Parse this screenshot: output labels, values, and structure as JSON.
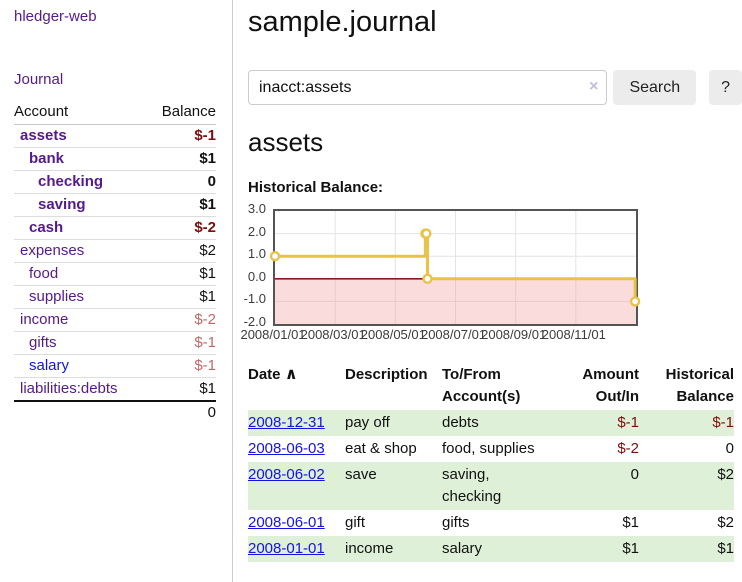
{
  "app": {
    "title": "hledger-web"
  },
  "sidebar": {
    "nav_journal": "Journal",
    "accounts": {
      "col_account": "Account",
      "col_balance": "Balance",
      "rows": [
        {
          "name": "assets",
          "depth": 1,
          "in_account": true,
          "balance": "$-1",
          "negative": true
        },
        {
          "name": "bank",
          "depth": 2,
          "in_account": true,
          "balance": "$1",
          "negative": false
        },
        {
          "name": "checking",
          "depth": 3,
          "in_account": true,
          "balance": "0",
          "negative": false
        },
        {
          "name": "saving",
          "depth": 3,
          "in_account": true,
          "balance": "$1",
          "negative": false
        },
        {
          "name": "cash",
          "depth": 2,
          "in_account": true,
          "balance": "$-2",
          "negative": true
        },
        {
          "name": "expenses",
          "depth": 1,
          "in_account": false,
          "balance": "$2",
          "negative": false
        },
        {
          "name": "food",
          "depth": 2,
          "in_account": false,
          "balance": "$1",
          "negative": false
        },
        {
          "name": "supplies",
          "depth": 2,
          "in_account": false,
          "balance": "$1",
          "negative": false
        },
        {
          "name": "income",
          "depth": 1,
          "in_account": false,
          "balance": "$-2",
          "negative": true
        },
        {
          "name": "gifts",
          "depth": 2,
          "in_account": false,
          "balance": "$-1",
          "negative": true
        },
        {
          "name": "salary",
          "depth": 2,
          "in_account": false,
          "balance": "$-1",
          "negative": true,
          "unvisited": true
        },
        {
          "name": "liabilities:debts",
          "depth": 1,
          "in_account": false,
          "balance": "$1",
          "negative": false
        }
      ],
      "total": "0"
    }
  },
  "main": {
    "journal_title": "sample.journal",
    "search": {
      "value": "inacct:assets",
      "clear_icon": "×",
      "search_button": "Search",
      "help_button": "?"
    },
    "account_heading": "assets",
    "chart_heading": "Historical Balance:"
  },
  "chart_data": {
    "type": "line",
    "title": "Historical Balance:",
    "series": [
      {
        "name": "$",
        "color": "#e9c24a",
        "step": true,
        "points": [
          {
            "date": "2008-01-01",
            "m": 0,
            "value": 1
          },
          {
            "date": "2008-06-01",
            "m": 5.0,
            "value": 2
          },
          {
            "date": "2008-06-02",
            "m": 5.03,
            "value": 2
          },
          {
            "date": "2008-06-03",
            "m": 5.07,
            "value": 0
          },
          {
            "date": "2008-12-31",
            "m": 11.97,
            "value": -1
          }
        ]
      }
    ],
    "xlabel": "",
    "ylabel": "",
    "ylim": [
      -2,
      3
    ],
    "xlim_months": [
      0,
      12
    ],
    "y_ticks": [
      {
        "value": 3,
        "label": "3.0"
      },
      {
        "value": 2,
        "label": "2.0"
      },
      {
        "value": 1,
        "label": "1.0"
      },
      {
        "value": 0,
        "label": "0.0"
      },
      {
        "value": -1,
        "label": "-1.0"
      },
      {
        "value": -2,
        "label": "-2.0"
      }
    ],
    "x_ticks": [
      {
        "m": 0,
        "label": "2008/01/01"
      },
      {
        "m": 2,
        "label": "2008/03/01"
      },
      {
        "m": 4,
        "label": "2008/05/01"
      },
      {
        "m": 6,
        "label": "2008/07/01"
      },
      {
        "m": 8,
        "label": "2008/09/01"
      },
      {
        "m": 10,
        "label": "2008/11/01"
      }
    ],
    "legend": {
      "position": "top-right",
      "label": "$"
    },
    "grid": true,
    "negative_region": true
  },
  "register": {
    "headers": [
      "Date",
      "Description",
      "To/From Account(s)",
      "Amount Out/In",
      "Historical Balance"
    ],
    "sort_icon": "∧",
    "rows": [
      {
        "date": "2008-12-31",
        "description": "pay off",
        "accounts": "debts",
        "amount": "$-1",
        "amount_negative": true,
        "balance": "$-1",
        "balance_negative": true
      },
      {
        "date": "2008-06-03",
        "description": "eat & shop",
        "accounts": "food, supplies",
        "amount": "$-2",
        "amount_negative": true,
        "balance": "0",
        "balance_negative": false
      },
      {
        "date": "2008-06-02",
        "description": "save",
        "accounts": "saving, checking",
        "amount": "0",
        "amount_negative": false,
        "balance": "$2",
        "balance_negative": false
      },
      {
        "date": "2008-06-01",
        "description": "gift",
        "accounts": "gifts",
        "amount": "$1",
        "amount_negative": false,
        "balance": "$2",
        "balance_negative": false
      },
      {
        "date": "2008-01-01",
        "description": "income",
        "accounts": "salary",
        "amount": "$1",
        "amount_negative": false,
        "balance": "$1",
        "balance_negative": false
      }
    ]
  },
  "palette": {
    "link_visited": "#551a8b",
    "link_unvisited": "#1414e0",
    "negative_strong": "#7d0d0d",
    "negative_soft": "#bb6a69",
    "row_stripe": "#dff0d8",
    "chart_line": "#e9c24a",
    "chart_negative_fill": "#f9dede",
    "chart_zero_line": "#8b1a1a",
    "button_bg": "#ececec"
  }
}
